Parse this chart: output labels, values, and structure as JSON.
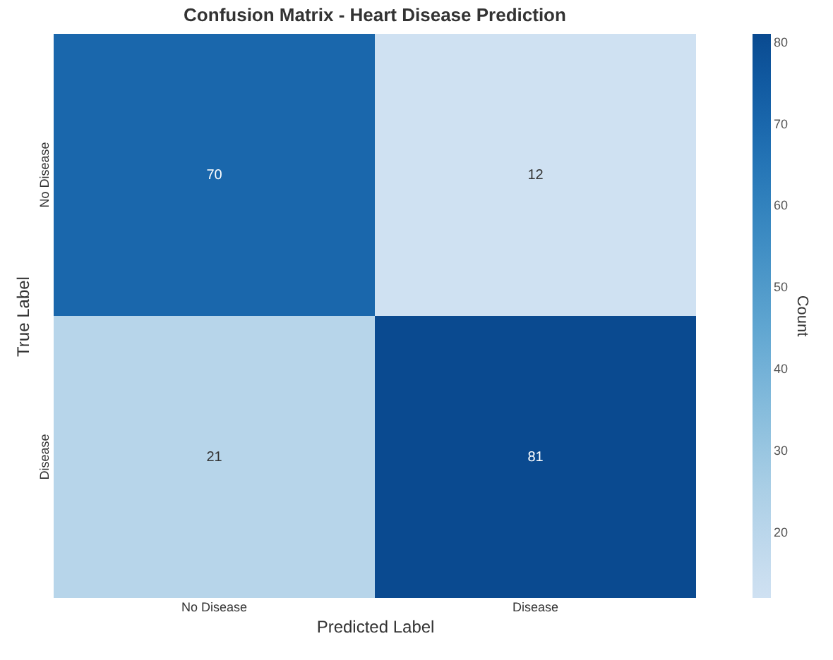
{
  "chart_data": {
    "type": "heatmap",
    "title": "Confusion Matrix - Heart Disease Prediction",
    "xlabel": "Predicted Label",
    "ylabel": "True Label",
    "clabel": "Count",
    "categories": [
      "No Disease",
      "Disease"
    ],
    "y_categories": [
      "No Disease",
      "Disease"
    ],
    "cells": [
      [
        70,
        12
      ],
      [
        21,
        81
      ]
    ],
    "clim": [
      12,
      81
    ],
    "cticks": [
      20,
      30,
      40,
      50,
      60,
      70,
      80
    ],
    "data_labels": true
  }
}
